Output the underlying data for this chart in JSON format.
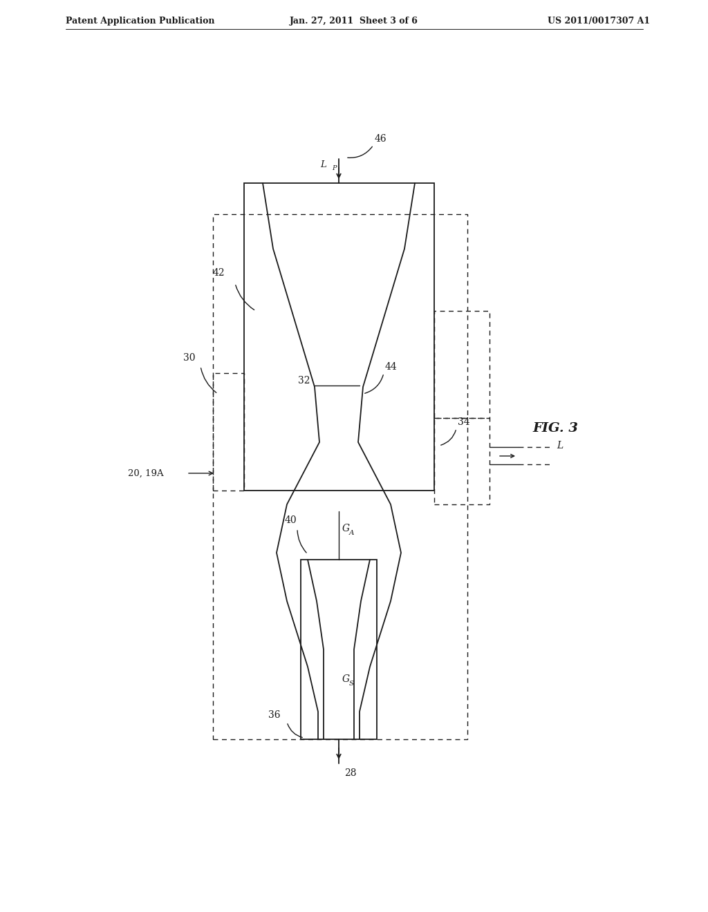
{
  "background_color": "#ffffff",
  "header_left": "Patent Application Publication",
  "header_center": "Jan. 27, 2011  Sheet 3 of 6",
  "header_right": "US 2011/0017307 A1",
  "fig_label": "FIG. 3",
  "line_color": "#1a1a1a",
  "labels": {
    "20_19A": "20, 19A",
    "28": "28",
    "30": "30",
    "32": "32",
    "34": "34",
    "36": "36",
    "40": "40",
    "42": "42",
    "44": "44",
    "46": "46",
    "GA": "G",
    "GA_sub": "A",
    "GS": "G",
    "GS_sub": "S",
    "L": "L",
    "LP": "L",
    "LP_sub": "P"
  }
}
